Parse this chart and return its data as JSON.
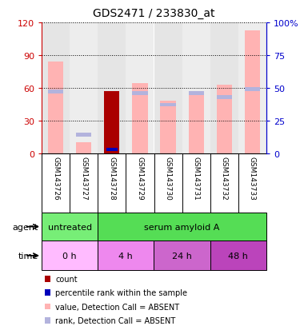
{
  "title": "GDS2471 / 233830_at",
  "samples": [
    "GSM143726",
    "GSM143727",
    "GSM143728",
    "GSM143729",
    "GSM143730",
    "GSM143731",
    "GSM143732",
    "GSM143733"
  ],
  "value_absent": [
    84,
    10,
    0,
    64,
    48,
    56,
    63,
    113
  ],
  "rank_absent_pct": [
    47,
    14,
    0,
    46,
    37,
    46,
    43,
    49
  ],
  "count_present": [
    0,
    0,
    57,
    0,
    0,
    0,
    0,
    0
  ],
  "percentile_present_pct": [
    0,
    0,
    3,
    0,
    0,
    0,
    0,
    0
  ],
  "ylim_left": [
    0,
    120
  ],
  "ylim_right": [
    0,
    100
  ],
  "yticks_left": [
    0,
    30,
    60,
    90,
    120
  ],
  "yticks_right": [
    0,
    25,
    50,
    75,
    100
  ],
  "yticklabels_right": [
    "0",
    "25",
    "50",
    "75",
    "100%"
  ],
  "color_count": "#aa0000",
  "color_percentile": "#0000bb",
  "color_value_absent": "#ffb3b3",
  "color_rank_absent": "#b3b3dd",
  "agent_groups": [
    {
      "label": "untreated",
      "span": [
        0,
        2
      ],
      "color": "#77ee77"
    },
    {
      "label": "serum amyloid A",
      "span": [
        2,
        8
      ],
      "color": "#55dd55"
    }
  ],
  "time_groups": [
    {
      "label": "0 h",
      "span": [
        0,
        2
      ],
      "color": "#ffbbff"
    },
    {
      "label": "4 h",
      "span": [
        2,
        4
      ],
      "color": "#ee88ee"
    },
    {
      "label": "24 h",
      "span": [
        4,
        6
      ],
      "color": "#cc66cc"
    },
    {
      "label": "48 h",
      "span": [
        6,
        8
      ],
      "color": "#bb44bb"
    }
  ],
  "legend_items": [
    {
      "label": "count",
      "color": "#aa0000"
    },
    {
      "label": "percentile rank within the sample",
      "color": "#0000bb"
    },
    {
      "label": "value, Detection Call = ABSENT",
      "color": "#ffb3b3"
    },
    {
      "label": "rank, Detection Call = ABSENT",
      "color": "#b3b3dd"
    }
  ],
  "bar_width": 0.55,
  "background_color": "#ffffff",
  "col_bg_even": "#cccccc",
  "col_bg_odd": "#dddddd",
  "axis_color_left": "#cc0000",
  "axis_color_right": "#0000cc",
  "grid_linestyle": "dotted",
  "grid_color": "#000000"
}
